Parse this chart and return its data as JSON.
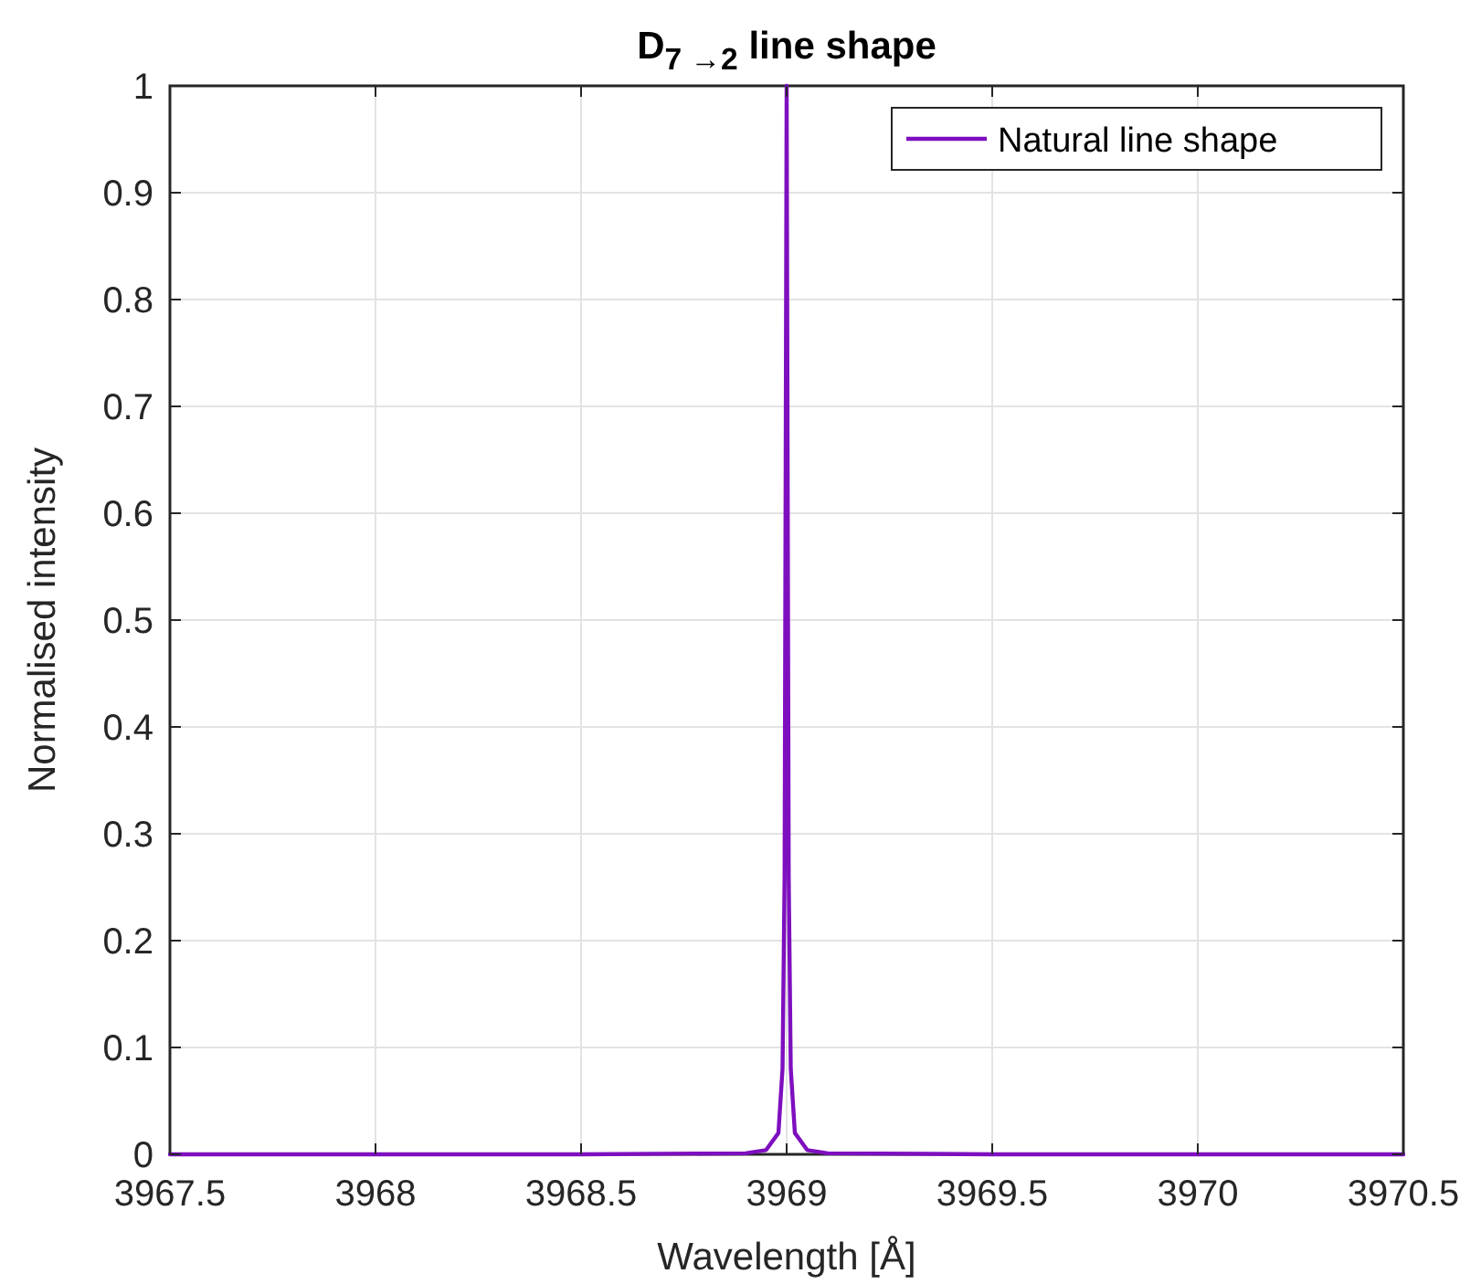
{
  "chart_data": {
    "type": "line",
    "title": "D$_{7 →2}$ line shape",
    "xlabel": "Wavelength [Å]",
    "ylabel": "Normalised intensity",
    "x": [
      3967.5,
      3968.5,
      3968.9,
      3968.95,
      3968.98,
      3968.99,
      3968.995,
      3968.998,
      3969,
      3969.002,
      3969.005,
      3969.01,
      3969.02,
      3969.05,
      3969.1,
      3969.5,
      3970.5
    ],
    "series": [
      {
        "name": "Natural line shape",
        "color": "#7e0fbf",
        "values": [
          0,
          0,
          0.001,
          0.004,
          0.02,
          0.08,
          0.26,
          0.7,
          1,
          0.7,
          0.26,
          0.08,
          0.02,
          0.004,
          0.001,
          0,
          0
        ]
      }
    ],
    "xlim": [
      3967.5,
      3970.5
    ],
    "xticks": [
      3967.5,
      3968,
      3968.5,
      3969,
      3969.5,
      3970,
      3970.5
    ],
    "ylim": [
      0,
      1
    ],
    "yticks": [
      0,
      0.1,
      0.2,
      0.3,
      0.4,
      0.5,
      0.6,
      0.7,
      0.8,
      0.9,
      1
    ],
    "grid": true,
    "legend": "top right",
    "marker": "none",
    "line_style": "solid"
  }
}
